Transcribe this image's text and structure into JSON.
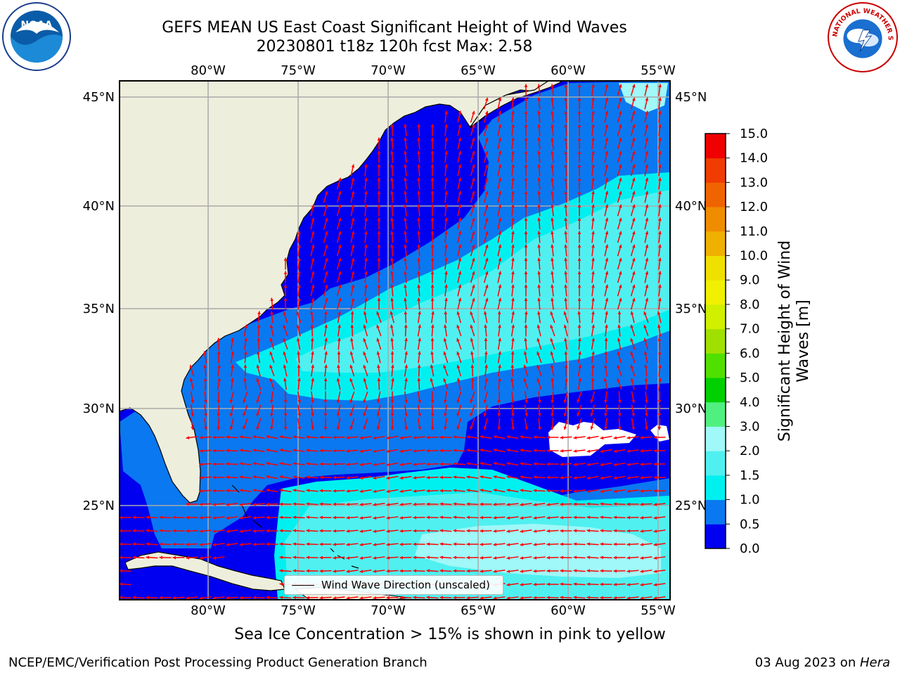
{
  "title": {
    "line1": "GEFS MEAN US East Coast Significant Height of Wind Waves",
    "line2": "20230801 t18z 120h fcst   Max: 2.58"
  },
  "axes": {
    "lon_ticks": [
      "80°W",
      "75°W",
      "70°W",
      "65°W",
      "60°W",
      "55°W"
    ],
    "lat_ticks": [
      "45°N",
      "40°N",
      "35°N",
      "30°N",
      "25°N"
    ],
    "lon_range": [
      -85,
      -54.5
    ],
    "lat_range": [
      20.5,
      46
    ]
  },
  "legend": {
    "label": "Wind Wave Direction (unscaled)"
  },
  "colorbar": {
    "label": "Significant Height of Wind Waves [m]",
    "ticks": [
      "0.0",
      "0.5",
      "1.0",
      "1.5",
      "2.0",
      "3.0",
      "4.0",
      "5.0",
      "6.0",
      "7.0",
      "8.0",
      "9.0",
      "10.0",
      "11.0",
      "12.0",
      "13.0",
      "14.0",
      "15.0"
    ],
    "colors": [
      "#0000f0",
      "#0a78f0",
      "#00f0f0",
      "#50f0f0",
      "#a0f8f8",
      "#50f080",
      "#00d000",
      "#50e000",
      "#a0e000",
      "#d0f000",
      "#f0f000",
      "#f0e000",
      "#f0b000",
      "#f08c00",
      "#f06400",
      "#f03c00",
      "#f00000"
    ]
  },
  "footer": {
    "note": "Sea Ice Concentration > 15% is shown in pink to yellow",
    "credit": "NCEP/EMC/Verification Post Processing Product Generation Branch",
    "date": "03 Aug 2023 on ",
    "machine": "Hera"
  },
  "colors": {
    "land": "#eeeedc",
    "band_0_0.5": "#0000f0",
    "band_0.5_1.0": "#0a78f0",
    "band_1.0_1.5": "#00f0f0",
    "band_1.5_2.0": "#50f0f0",
    "band_2.0_3.0": "#a0f8f8",
    "arrow": "#ff0000"
  },
  "logos": {
    "noaa": "NOAA",
    "nws": "NATIONAL WEATHER SERVICE"
  }
}
